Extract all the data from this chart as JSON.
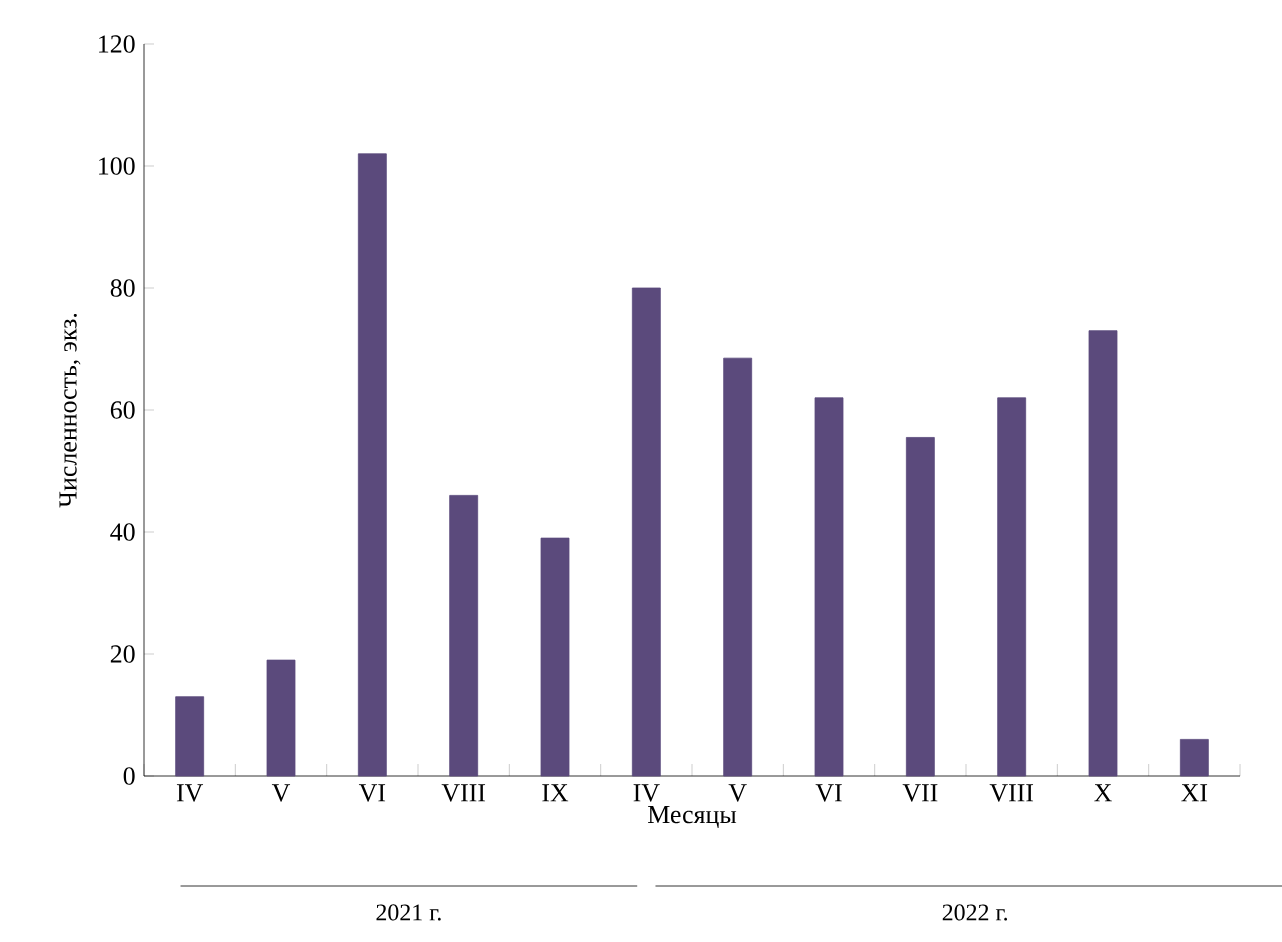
{
  "chart_data": {
    "type": "bar",
    "xlabel": "Месяцы",
    "ylabel": "Численность, экз.",
    "categories": [
      "IV",
      "V",
      "VI",
      "VIII",
      "IX",
      "IV",
      "V",
      "VI",
      "VII",
      "VIII",
      "X",
      "XI"
    ],
    "values": [
      13,
      19,
      102,
      46,
      39,
      80,
      68.5,
      62,
      55.5,
      62,
      73,
      6
    ],
    "color": "#5b4a7c",
    "ylim": [
      0,
      120
    ],
    "yticks": [
      0,
      20,
      40,
      60,
      80,
      100,
      120
    ],
    "annotations": [
      "2021 г.",
      "2022 г."
    ]
  }
}
